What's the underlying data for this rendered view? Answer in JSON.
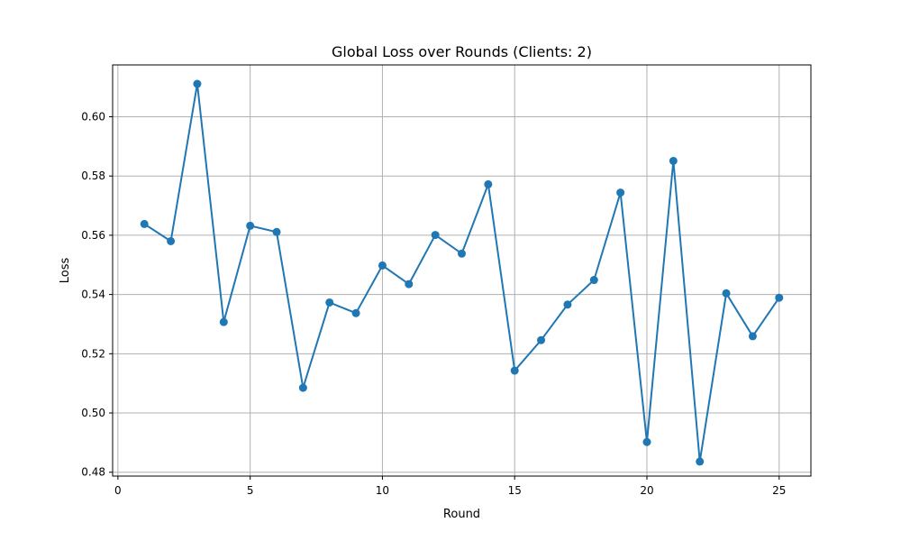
{
  "chart_data": {
    "type": "line",
    "title": "Global Loss over Rounds (Clients: 2)",
    "xlabel": "Round",
    "ylabel": "Loss",
    "xlim": [
      -0.2,
      26.2
    ],
    "ylim": [
      0.4787,
      0.6175
    ],
    "xticks": [
      0,
      5,
      10,
      15,
      20,
      25
    ],
    "xtick_labels": [
      "0",
      "5",
      "10",
      "15",
      "20",
      "25"
    ],
    "yticks": [
      0.48,
      0.5,
      0.52,
      0.54,
      0.56,
      0.58,
      0.6
    ],
    "ytick_labels": [
      "0.48",
      "0.50",
      "0.52",
      "0.54",
      "0.56",
      "0.58",
      "0.60"
    ],
    "grid": true,
    "color": "#1f77b4",
    "x": [
      1,
      2,
      3,
      4,
      5,
      6,
      7,
      8,
      9,
      10,
      11,
      12,
      13,
      14,
      15,
      16,
      17,
      18,
      19,
      20,
      21,
      22,
      23,
      24,
      25
    ],
    "series": [
      {
        "values": [
          0.5638,
          0.558,
          0.6111,
          0.5307,
          0.5632,
          0.5611,
          0.5085,
          0.5373,
          0.5337,
          0.5498,
          0.5435,
          0.5601,
          0.5538,
          0.5772,
          0.5143,
          0.5246,
          0.5366,
          0.5449,
          0.5744,
          0.4902,
          0.5851,
          0.4836,
          0.5404,
          0.5259,
          0.5389
        ]
      }
    ]
  }
}
